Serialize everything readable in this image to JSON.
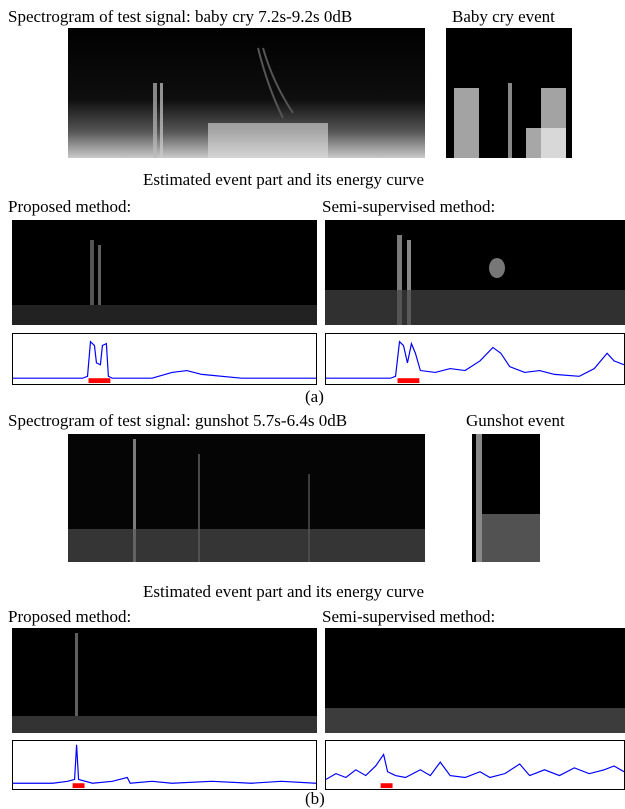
{
  "panel_a": {
    "spectrogram_title": "Spectrogram of test signal: baby cry 7.2s-9.2s 0dB",
    "event_title": "Baby cry event",
    "estimated_title": "Estimated event part and its energy curve",
    "proposed_label": "Proposed method:",
    "semi_label": "Semi-supervised method:",
    "caption": "(a)"
  },
  "panel_b": {
    "spectrogram_title": "Spectrogram of test signal: gunshot 5.7s-6.4s 0dB",
    "event_title": "Gunshot event",
    "estimated_title": "Estimated event part and its energy curve",
    "proposed_label": "Proposed method:",
    "semi_label": "Semi-supervised method:",
    "caption": "(b)"
  },
  "colors": {
    "curve": "#0000ff",
    "event_marker": "#ff0000",
    "spectrogram_bg": "#000000"
  }
}
